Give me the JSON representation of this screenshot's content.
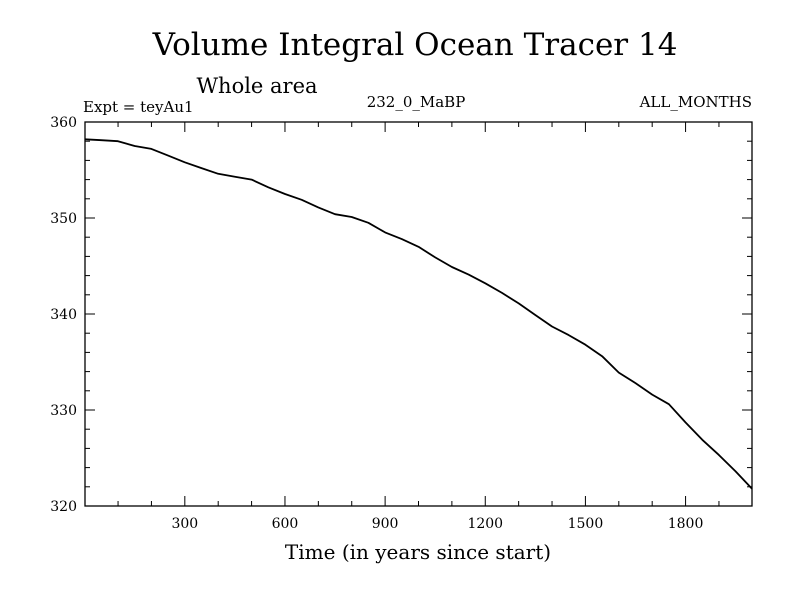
{
  "chart_data": {
    "type": "line",
    "title": "Volume Integral Ocean Tracer 14",
    "subtitle": "Whole area",
    "annotations": {
      "left": "Expt = teyAu1",
      "center": "232_0_MaBP",
      "right": "ALL_MONTHS"
    },
    "xlabel": "Time (in years since start)",
    "ylabel": "",
    "xlim": [
      1,
      1999
    ],
    "ylim": [
      320,
      360
    ],
    "xticks": [
      300,
      600,
      900,
      1200,
      1500,
      1800
    ],
    "yticks": [
      320,
      330,
      340,
      350,
      360
    ],
    "grid": false,
    "series": [
      {
        "color": "#000000",
        "x": [
          1,
          50,
          100,
          150,
          200,
          250,
          300,
          350,
          400,
          450,
          500,
          550,
          600,
          650,
          700,
          750,
          800,
          850,
          900,
          950,
          1000,
          1050,
          1100,
          1150,
          1200,
          1250,
          1300,
          1350,
          1400,
          1450,
          1500,
          1550,
          1600,
          1650,
          1700,
          1750,
          1800,
          1850,
          1900,
          1950,
          1999
        ],
        "y": [
          358.2,
          358.1,
          358.0,
          357.5,
          357.2,
          356.5,
          355.8,
          355.2,
          354.6,
          354.3,
          354.0,
          353.2,
          352.5,
          351.9,
          351.1,
          350.4,
          350.1,
          349.5,
          348.5,
          347.8,
          347.0,
          345.9,
          344.9,
          344.1,
          343.2,
          342.2,
          341.1,
          339.9,
          338.7,
          337.8,
          336.8,
          335.6,
          333.9,
          332.8,
          331.6,
          330.6,
          328.7,
          326.9,
          325.3,
          323.6,
          321.8
        ]
      }
    ]
  }
}
